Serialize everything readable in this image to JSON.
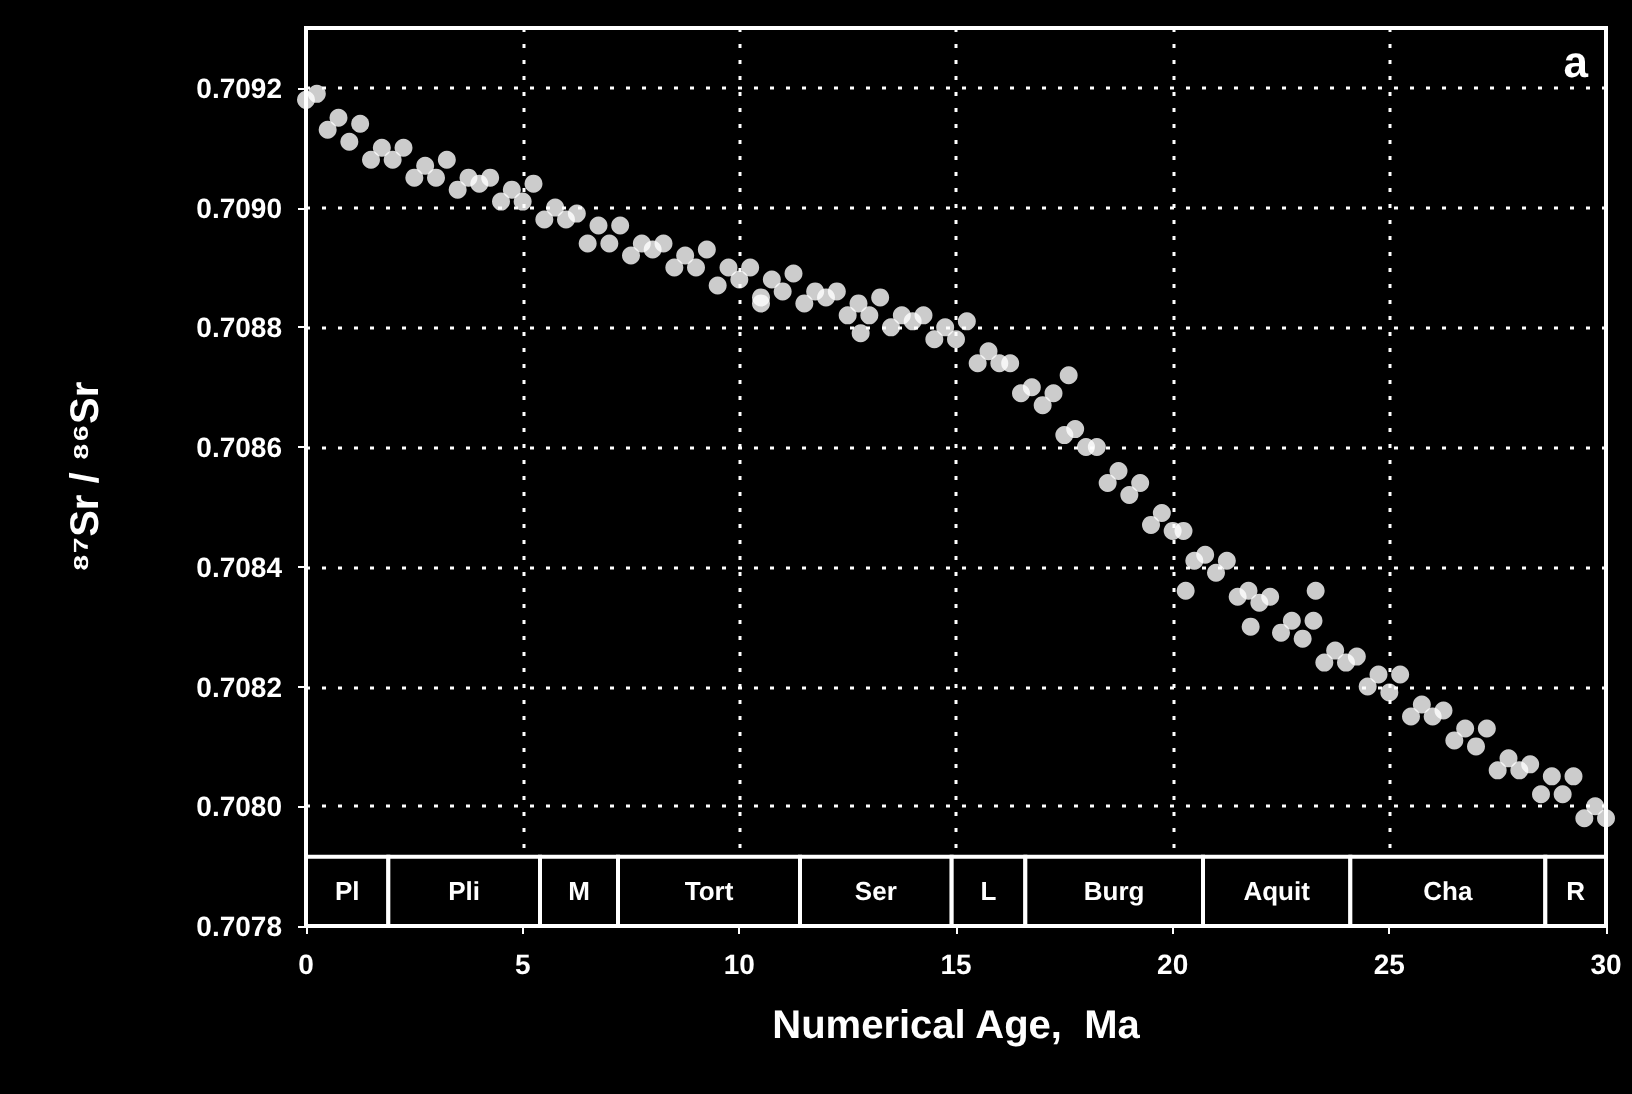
{
  "chart_data": {
    "type": "scatter",
    "xlabel": "Numerical Age,  Ma",
    "ylabel": "⁸⁷Sr / ⁸⁶Sr",
    "annotations": [
      "a"
    ],
    "xlim": [
      0,
      30
    ],
    "xticks": [
      0,
      5,
      10,
      15,
      20,
      25,
      30
    ],
    "ylim": [
      0.7078,
      0.7093
    ],
    "yticks": [
      0.7078,
      {
        "value": 0.708,
        "label": "0.7080"
      },
      0.7082,
      0.7084,
      0.7086,
      0.7088,
      {
        "value": 0.709,
        "label": "0.7090"
      },
      0.7092
    ],
    "grid": true,
    "marker": "circle",
    "bands": [
      {
        "axis": "x",
        "from": 0,
        "to": 1.9,
        "label": "Pl"
      },
      {
        "axis": "x",
        "from": 1.9,
        "to": 5.4,
        "label": "Pli"
      },
      {
        "axis": "x",
        "from": 5.4,
        "to": 7.2,
        "label": "M"
      },
      {
        "axis": "x",
        "from": 7.2,
        "to": 11.4,
        "label": "Tort"
      },
      {
        "axis": "x",
        "from": 11.4,
        "to": 14.9,
        "label": "Ser"
      },
      {
        "axis": "x",
        "from": 14.9,
        "to": 16.6,
        "label": "L"
      },
      {
        "axis": "x",
        "from": 16.6,
        "to": 20.7,
        "label": "Burg"
      },
      {
        "axis": "x",
        "from": 20.7,
        "to": 24.1,
        "label": "Aquit"
      },
      {
        "axis": "x",
        "from": 24.1,
        "to": 28.6,
        "label": "Cha"
      },
      {
        "axis": "x",
        "from": 28.6,
        "to": 30,
        "label": "R"
      }
    ],
    "series": [
      {
        "color": "#ffffff",
        "x": [
          0,
          0.25,
          0.5,
          0.75,
          1,
          1.25,
          1.5,
          1.75,
          2,
          2.25,
          2.5,
          2.75,
          3,
          3.25,
          3.5,
          3.75,
          4,
          4.25,
          4.5,
          4.75,
          5,
          5.25,
          5.5,
          5.75,
          6,
          6.25,
          6.5,
          6.75,
          7,
          7.25,
          7.5,
          7.75,
          8,
          8.25,
          8.5,
          8.75,
          9,
          9.25,
          9.5,
          9.75,
          10,
          10.25,
          10.5,
          10.75,
          11,
          11.25,
          11.5,
          11.75,
          12,
          12.25,
          12.5,
          12.75,
          13,
          13.25,
          13.5,
          13.75,
          14,
          14.25,
          14.5,
          14.75,
          15,
          15.25,
          15.5,
          15.75,
          16,
          16.25,
          16.5,
          16.75,
          17,
          17.25,
          17.5,
          17.75,
          18,
          18.25,
          18.5,
          18.75,
          19,
          19.25,
          19.5,
          19.75,
          20,
          20.25,
          20.5,
          20.75,
          21,
          21.25,
          21.5,
          21.75,
          22,
          22.25,
          22.5,
          22.75,
          23,
          23.25,
          23.5,
          23.75,
          24,
          24.25,
          24.5,
          24.75,
          25,
          25.25,
          25.5,
          25.75,
          26,
          26.25,
          26.5,
          26.75,
          27,
          27.25,
          27.5,
          27.75,
          28,
          28.25,
          28.5,
          28.75,
          29,
          29.25,
          29.5,
          29.75,
          30,
          17.6,
          20.3,
          21.8,
          23.3,
          10.5,
          12.8
        ],
        "values": [
          0.70918,
          0.70919,
          0.70913,
          0.70915,
          0.70911,
          0.70914,
          0.70908,
          0.7091,
          0.70908,
          0.7091,
          0.70905,
          0.70907,
          0.70905,
          0.70908,
          0.70903,
          0.70905,
          0.70904,
          0.70905,
          0.70901,
          0.70903,
          0.70901,
          0.70904,
          0.70898,
          0.709,
          0.70898,
          0.70899,
          0.70894,
          0.70897,
          0.70894,
          0.70897,
          0.70892,
          0.70894,
          0.70893,
          0.70894,
          0.7089,
          0.70892,
          0.7089,
          0.70893,
          0.70887,
          0.7089,
          0.70888,
          0.7089,
          0.70885,
          0.70888,
          0.70886,
          0.70889,
          0.70884,
          0.70886,
          0.70885,
          0.70886,
          0.70882,
          0.70884,
          0.70882,
          0.70885,
          0.7088,
          0.70882,
          0.70881,
          0.70882,
          0.70878,
          0.7088,
          0.70878,
          0.70881,
          0.70874,
          0.70876,
          0.70874,
          0.70874,
          0.70869,
          0.7087,
          0.70867,
          0.70869,
          0.70862,
          0.70863,
          0.7086,
          0.7086,
          0.70854,
          0.70856,
          0.70852,
          0.70854,
          0.70847,
          0.70849,
          0.70846,
          0.70846,
          0.70841,
          0.70842,
          0.70839,
          0.70841,
          0.70835,
          0.70836,
          0.70834,
          0.70835,
          0.70829,
          0.70831,
          0.70828,
          0.70831,
          0.70824,
          0.70826,
          0.70824,
          0.70825,
          0.7082,
          0.70822,
          0.70819,
          0.70822,
          0.70815,
          0.70817,
          0.70815,
          0.70816,
          0.70811,
          0.70813,
          0.7081,
          0.70813,
          0.70806,
          0.70808,
          0.70806,
          0.70807,
          0.70802,
          0.70805,
          0.70802,
          0.70805,
          0.70798,
          0.708,
          0.70798,
          0.70872,
          0.70836,
          0.7083,
          0.70836,
          0.70884,
          0.70879
        ]
      }
    ]
  }
}
